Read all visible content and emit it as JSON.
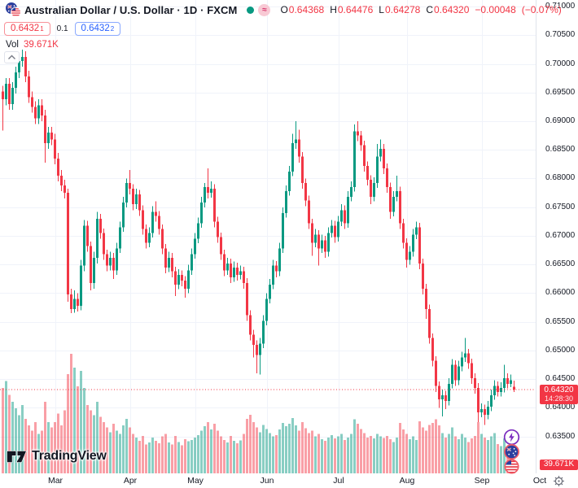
{
  "header": {
    "symbol_title": "Australian Dollar / U.S. Dollar · 1D · FXCM",
    "delayed_badge": "≈",
    "ohlc": {
      "o_label": "O",
      "o_value": "0.64368",
      "h_label": "H",
      "h_value": "0.64476",
      "l_label": "L",
      "l_value": "0.64278",
      "c_label": "C",
      "c_value": "0.64320",
      "change": "−0.00048",
      "change_pct": "(−0.07%)"
    },
    "sell_price": "0.6432",
    "sell_sup": "1",
    "spread": "0.1",
    "buy_price": "0.6432",
    "buy_sup": "2",
    "vol_label": "Vol",
    "vol_value": "39.671K"
  },
  "logo": {
    "text": "TradingView"
  },
  "colors": {
    "up": "#089981",
    "down": "#f23645",
    "vol_up": "rgba(8,153,129,0.48)",
    "vol_down": "rgba(242,54,69,0.48)",
    "grid": "#f0f3fa",
    "axis_border": "#e0e3eb",
    "text": "#131722",
    "muted": "#787b86",
    "buy": "#2962ff",
    "sell": "#f23645",
    "label_bg": "#f23645",
    "badge_purple": "#7b2cbf",
    "flag_ring": "#ef5b66",
    "flag_blue": "#2b3f9e",
    "flag_red": "#e53947"
  },
  "chart_data": {
    "type": "candlestick+volume",
    "title": "Australian Dollar / U.S. Dollar",
    "timeframe": "1D",
    "exchange": "FXCM",
    "price_axis": {
      "min": 0.635,
      "max": 0.71,
      "step": 0.005,
      "ticks": [
        "0.71000",
        "0.70500",
        "0.70000",
        "0.69500",
        "0.69000",
        "0.68500",
        "0.68000",
        "0.67500",
        "0.67000",
        "0.66500",
        "0.66000",
        "0.65500",
        "0.65000",
        "0.64500",
        "0.64000",
        "0.63500"
      ]
    },
    "x_axis": {
      "labels": [
        "Mar",
        "Apr",
        "May",
        "Jun",
        "Jul",
        "Aug",
        "Sep",
        "Oct"
      ],
      "month_start_indices": [
        16,
        39,
        59,
        81,
        103,
        124,
        147
      ]
    },
    "last_price": {
      "value": "0.64320",
      "countdown": "14:28:30",
      "price": 0.6432
    },
    "volume_label": "39.671K",
    "candles_format": [
      "open",
      "high",
      "low",
      "close",
      "volume_k"
    ],
    "candles": [
      [
        0.6952,
        0.6962,
        0.6884,
        0.6938,
        250
      ],
      [
        0.6938,
        0.6975,
        0.6928,
        0.6965,
        270
      ],
      [
        0.6965,
        0.6975,
        0.692,
        0.693,
        230
      ],
      [
        0.693,
        0.6968,
        0.692,
        0.6958,
        210
      ],
      [
        0.6958,
        0.6995,
        0.6948,
        0.6985,
        190
      ],
      [
        0.6985,
        0.7015,
        0.6975,
        0.7005,
        170
      ],
      [
        0.7005,
        0.7025,
        0.6995,
        0.7012,
        200
      ],
      [
        0.7012,
        0.7022,
        0.6968,
        0.6978,
        160
      ],
      [
        0.6978,
        0.6988,
        0.6932,
        0.6942,
        140
      ],
      [
        0.6942,
        0.6952,
        0.6915,
        0.6925,
        125
      ],
      [
        0.6925,
        0.6935,
        0.6895,
        0.6905,
        150
      ],
      [
        0.6905,
        0.6938,
        0.6895,
        0.6928,
        115
      ],
      [
        0.6928,
        0.6938,
        0.69,
        0.691,
        125
      ],
      [
        0.691,
        0.692,
        0.6828,
        0.6862,
        210
      ],
      [
        0.6862,
        0.689,
        0.6852,
        0.688,
        150
      ],
      [
        0.688,
        0.689,
        0.6858,
        0.6868,
        135
      ],
      [
        0.6868,
        0.6878,
        0.6825,
        0.6835,
        150
      ],
      [
        0.6835,
        0.6845,
        0.6795,
        0.6805,
        175
      ],
      [
        0.6805,
        0.6815,
        0.6778,
        0.6788,
        140
      ],
      [
        0.6788,
        0.6798,
        0.6765,
        0.6775,
        185
      ],
      [
        0.6775,
        0.6782,
        0.6585,
        0.6598,
        290
      ],
      [
        0.6598,
        0.6608,
        0.6565,
        0.6572,
        350
      ],
      [
        0.6572,
        0.6605,
        0.6566,
        0.659,
        310
      ],
      [
        0.659,
        0.66,
        0.6568,
        0.6578,
        255
      ],
      [
        0.6578,
        0.6658,
        0.657,
        0.6648,
        300
      ],
      [
        0.6648,
        0.6728,
        0.6638,
        0.6718,
        250
      ],
      [
        0.6718,
        0.6726,
        0.6672,
        0.6682,
        200
      ],
      [
        0.6682,
        0.669,
        0.6605,
        0.6618,
        185
      ],
      [
        0.6618,
        0.6672,
        0.6608,
        0.6662,
        170
      ],
      [
        0.6662,
        0.6742,
        0.6652,
        0.673,
        210
      ],
      [
        0.673,
        0.6738,
        0.6695,
        0.6705,
        165
      ],
      [
        0.6705,
        0.6713,
        0.6658,
        0.6668,
        150
      ],
      [
        0.6668,
        0.6676,
        0.6638,
        0.6648,
        135
      ],
      [
        0.6648,
        0.6672,
        0.664,
        0.6662,
        120
      ],
      [
        0.6662,
        0.667,
        0.6625,
        0.664,
        145
      ],
      [
        0.664,
        0.6688,
        0.6632,
        0.6678,
        125
      ],
      [
        0.6678,
        0.6725,
        0.667,
        0.6715,
        115
      ],
      [
        0.6715,
        0.6768,
        0.6707,
        0.6758,
        140
      ],
      [
        0.6758,
        0.68,
        0.675,
        0.6792,
        160
      ],
      [
        0.6792,
        0.6815,
        0.6772,
        0.6782,
        135
      ],
      [
        0.6782,
        0.679,
        0.6745,
        0.6755,
        115
      ],
      [
        0.6755,
        0.6782,
        0.6747,
        0.6772,
        105
      ],
      [
        0.6772,
        0.678,
        0.6735,
        0.6745,
        95
      ],
      [
        0.6745,
        0.6753,
        0.6702,
        0.6712,
        110
      ],
      [
        0.6712,
        0.672,
        0.6678,
        0.6688,
        85
      ],
      [
        0.6688,
        0.6715,
        0.668,
        0.6705,
        90
      ],
      [
        0.6705,
        0.6752,
        0.6697,
        0.6742,
        105
      ],
      [
        0.6742,
        0.676,
        0.6725,
        0.6735,
        95
      ],
      [
        0.6735,
        0.6743,
        0.6702,
        0.6712,
        88
      ],
      [
        0.6712,
        0.672,
        0.6668,
        0.6678,
        108
      ],
      [
        0.6678,
        0.6686,
        0.6635,
        0.6645,
        115
      ],
      [
        0.6645,
        0.6672,
        0.6637,
        0.6662,
        90
      ],
      [
        0.6662,
        0.667,
        0.6628,
        0.6638,
        85
      ],
      [
        0.6638,
        0.6646,
        0.6595,
        0.6615,
        110
      ],
      [
        0.6615,
        0.6642,
        0.6607,
        0.6632,
        92
      ],
      [
        0.6632,
        0.664,
        0.6612,
        0.6622,
        82
      ],
      [
        0.6622,
        0.663,
        0.6592,
        0.6608,
        100
      ],
      [
        0.6608,
        0.665,
        0.66,
        0.664,
        94
      ],
      [
        0.664,
        0.6678,
        0.6632,
        0.6668,
        98
      ],
      [
        0.6668,
        0.6705,
        0.666,
        0.6695,
        105
      ],
      [
        0.6695,
        0.6732,
        0.6687,
        0.6722,
        112
      ],
      [
        0.6722,
        0.6768,
        0.6714,
        0.6758,
        125
      ],
      [
        0.6758,
        0.6792,
        0.675,
        0.6785,
        138
      ],
      [
        0.6785,
        0.6818,
        0.6765,
        0.6775,
        150
      ],
      [
        0.6775,
        0.6795,
        0.6767,
        0.6782,
        128
      ],
      [
        0.6782,
        0.679,
        0.6715,
        0.6725,
        145
      ],
      [
        0.6725,
        0.6733,
        0.6688,
        0.6698,
        125
      ],
      [
        0.6698,
        0.6706,
        0.6658,
        0.6668,
        108
      ],
      [
        0.6668,
        0.6676,
        0.663,
        0.664,
        98
      ],
      [
        0.664,
        0.6662,
        0.6632,
        0.6652,
        90
      ],
      [
        0.6652,
        0.666,
        0.6618,
        0.6628,
        110
      ],
      [
        0.6628,
        0.6655,
        0.662,
        0.6645,
        95
      ],
      [
        0.6645,
        0.6653,
        0.6622,
        0.6632,
        88
      ],
      [
        0.6632,
        0.6648,
        0.6624,
        0.6638,
        96
      ],
      [
        0.6638,
        0.6646,
        0.6608,
        0.6618,
        115
      ],
      [
        0.6618,
        0.6626,
        0.6552,
        0.6562,
        160
      ],
      [
        0.6562,
        0.657,
        0.6518,
        0.6528,
        172
      ],
      [
        0.6528,
        0.6536,
        0.6488,
        0.651,
        150
      ],
      [
        0.651,
        0.6518,
        0.646,
        0.6492,
        135
      ],
      [
        0.6492,
        0.6522,
        0.6458,
        0.6512,
        120
      ],
      [
        0.6512,
        0.6562,
        0.6504,
        0.6552,
        142
      ],
      [
        0.6552,
        0.66,
        0.6544,
        0.659,
        130
      ],
      [
        0.659,
        0.6625,
        0.6582,
        0.6615,
        118
      ],
      [
        0.6615,
        0.6658,
        0.6607,
        0.6648,
        108
      ],
      [
        0.6648,
        0.6656,
        0.6628,
        0.6638,
        112
      ],
      [
        0.6638,
        0.6688,
        0.663,
        0.6678,
        128
      ],
      [
        0.6678,
        0.675,
        0.667,
        0.674,
        148
      ],
      [
        0.674,
        0.6788,
        0.6732,
        0.6778,
        138
      ],
      [
        0.6778,
        0.6822,
        0.677,
        0.6812,
        145
      ],
      [
        0.6812,
        0.6878,
        0.6804,
        0.6862,
        162
      ],
      [
        0.6862,
        0.69,
        0.6852,
        0.6868,
        140
      ],
      [
        0.6868,
        0.6885,
        0.6828,
        0.6838,
        125
      ],
      [
        0.6838,
        0.6846,
        0.6782,
        0.6792,
        150
      ],
      [
        0.6792,
        0.68,
        0.6752,
        0.6762,
        132
      ],
      [
        0.6762,
        0.677,
        0.6712,
        0.6722,
        118
      ],
      [
        0.6722,
        0.673,
        0.6665,
        0.6688,
        125
      ],
      [
        0.6688,
        0.6712,
        0.668,
        0.6702,
        108
      ],
      [
        0.6702,
        0.671,
        0.6648,
        0.6678,
        115
      ],
      [
        0.6678,
        0.6702,
        0.667,
        0.6692,
        100
      ],
      [
        0.6692,
        0.67,
        0.6662,
        0.6672,
        95
      ],
      [
        0.6672,
        0.6715,
        0.6664,
        0.6705,
        105
      ],
      [
        0.6705,
        0.6728,
        0.6697,
        0.6718,
        112
      ],
      [
        0.6718,
        0.6726,
        0.6688,
        0.6698,
        102
      ],
      [
        0.6698,
        0.6735,
        0.669,
        0.6725,
        108
      ],
      [
        0.6725,
        0.6755,
        0.6717,
        0.6745,
        115
      ],
      [
        0.6745,
        0.6753,
        0.6712,
        0.6722,
        98
      ],
      [
        0.6722,
        0.6778,
        0.6714,
        0.6768,
        105
      ],
      [
        0.6768,
        0.6795,
        0.676,
        0.6785,
        115
      ],
      [
        0.6785,
        0.6894,
        0.6777,
        0.6882,
        158
      ],
      [
        0.6882,
        0.69,
        0.6865,
        0.6875,
        145
      ],
      [
        0.6875,
        0.6883,
        0.6848,
        0.6858,
        130
      ],
      [
        0.6858,
        0.6866,
        0.6812,
        0.6822,
        118
      ],
      [
        0.6822,
        0.683,
        0.6788,
        0.6798,
        105
      ],
      [
        0.6798,
        0.6806,
        0.6755,
        0.6768,
        110
      ],
      [
        0.6768,
        0.6802,
        0.676,
        0.6792,
        102
      ],
      [
        0.6792,
        0.686,
        0.6784,
        0.6838,
        115
      ],
      [
        0.6838,
        0.6868,
        0.683,
        0.6852,
        108
      ],
      [
        0.6852,
        0.686,
        0.6808,
        0.6818,
        103
      ],
      [
        0.6818,
        0.6826,
        0.6775,
        0.6785,
        110
      ],
      [
        0.6785,
        0.6793,
        0.673,
        0.6742,
        100
      ],
      [
        0.6742,
        0.6778,
        0.6734,
        0.6768,
        92
      ],
      [
        0.6768,
        0.6805,
        0.676,
        0.6778,
        105
      ],
      [
        0.6778,
        0.6786,
        0.6712,
        0.6722,
        148
      ],
      [
        0.6722,
        0.673,
        0.6678,
        0.6688,
        128
      ],
      [
        0.6688,
        0.6696,
        0.6645,
        0.6658,
        115
      ],
      [
        0.6658,
        0.6682,
        0.665,
        0.6672,
        100
      ],
      [
        0.6672,
        0.6712,
        0.6664,
        0.6702,
        108
      ],
      [
        0.6702,
        0.6725,
        0.6694,
        0.6715,
        98
      ],
      [
        0.6715,
        0.6723,
        0.6642,
        0.6652,
        152
      ],
      [
        0.6652,
        0.666,
        0.6598,
        0.6608,
        135
      ],
      [
        0.6608,
        0.6616,
        0.6555,
        0.6572,
        125
      ],
      [
        0.6572,
        0.658,
        0.6512,
        0.6522,
        142
      ],
      [
        0.6522,
        0.653,
        0.6472,
        0.6482,
        148
      ],
      [
        0.6482,
        0.649,
        0.6428,
        0.6438,
        158
      ],
      [
        0.6438,
        0.6446,
        0.64,
        0.6415,
        140
      ],
      [
        0.6415,
        0.6432,
        0.6385,
        0.6422,
        118
      ],
      [
        0.6422,
        0.643,
        0.6398,
        0.6412,
        105
      ],
      [
        0.6412,
        0.6452,
        0.6404,
        0.6442,
        115
      ],
      [
        0.6442,
        0.6485,
        0.6434,
        0.6475,
        135
      ],
      [
        0.6475,
        0.6483,
        0.6438,
        0.6448,
        108
      ],
      [
        0.6448,
        0.6482,
        0.644,
        0.6472,
        100
      ],
      [
        0.6472,
        0.6498,
        0.6464,
        0.6488,
        115
      ],
      [
        0.6488,
        0.6522,
        0.648,
        0.6495,
        105
      ],
      [
        0.6495,
        0.6503,
        0.6468,
        0.6478,
        92
      ],
      [
        0.6478,
        0.6486,
        0.6442,
        0.6452,
        102
      ],
      [
        0.6452,
        0.646,
        0.6425,
        0.6435,
        110
      ],
      [
        0.6435,
        0.6443,
        0.6375,
        0.6392,
        150
      ],
      [
        0.6392,
        0.6408,
        0.6384,
        0.6398,
        115
      ],
      [
        0.6398,
        0.6406,
        0.637,
        0.6388,
        105
      ],
      [
        0.6388,
        0.6412,
        0.638,
        0.6402,
        98
      ],
      [
        0.6402,
        0.6432,
        0.6394,
        0.6422,
        108
      ],
      [
        0.6422,
        0.6448,
        0.6414,
        0.6438,
        118
      ],
      [
        0.6438,
        0.6446,
        0.642,
        0.6428,
        86
      ],
      [
        0.6428,
        0.6445,
        0.642,
        0.6435,
        80
      ],
      [
        0.6435,
        0.6475,
        0.6427,
        0.6452,
        102
      ],
      [
        0.6452,
        0.646,
        0.6434,
        0.6442,
        76
      ],
      [
        0.6442,
        0.6458,
        0.6436,
        0.6448,
        62
      ],
      [
        0.64368,
        0.64476,
        0.64278,
        0.6432,
        39.671
      ]
    ]
  }
}
